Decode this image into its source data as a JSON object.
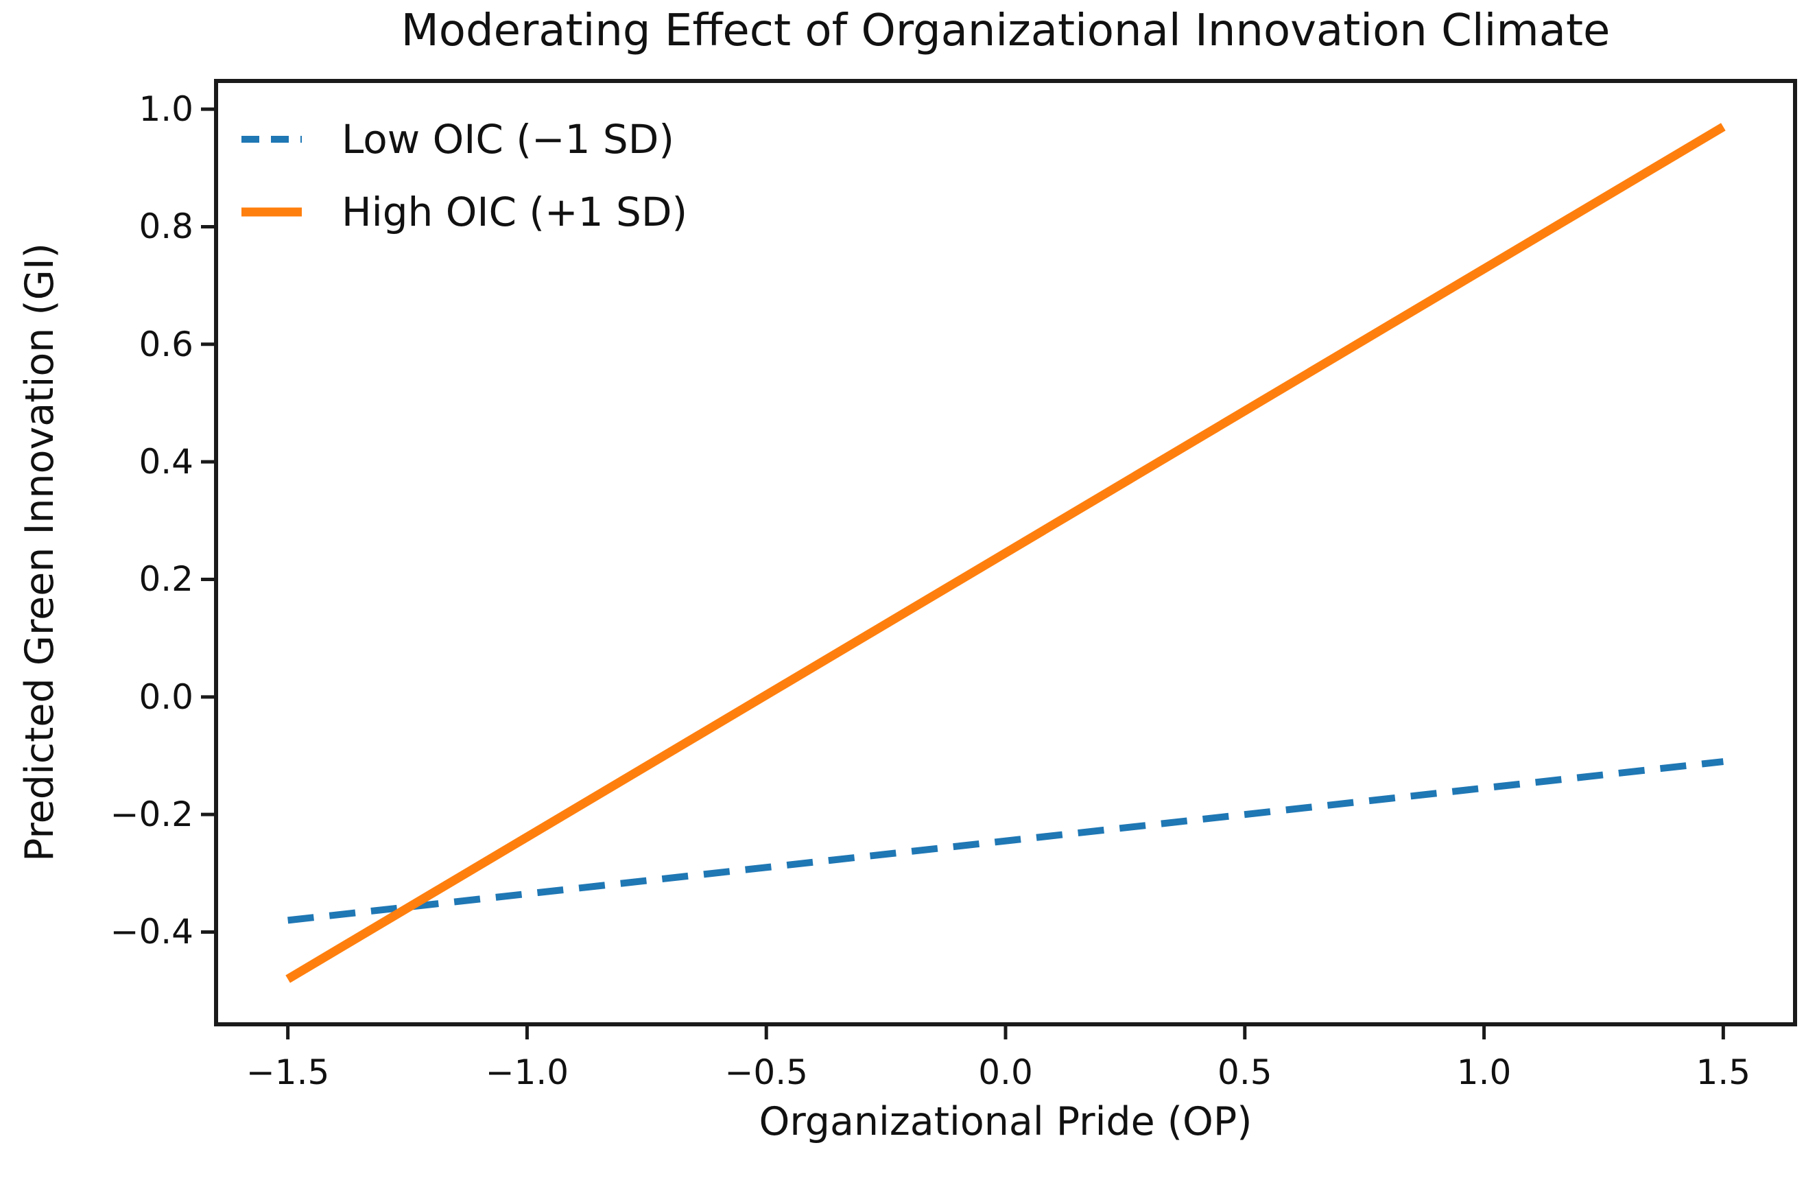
{
  "chart_data": {
    "type": "line",
    "title": "Moderating Effect of Organizational Innovation Climate",
    "xlabel": "Organizational Pride (OP)",
    "ylabel": "Predicted Green Innovation (GI)",
    "xlim": [
      -1.65,
      1.65
    ],
    "ylim": [
      -0.557,
      1.048
    ],
    "xticks": [
      -1.5,
      -1.0,
      -0.5,
      0.0,
      0.5,
      1.0,
      1.5
    ],
    "xtick_labels": [
      "−1.5",
      "−1.0",
      "−0.5",
      "0.0",
      "0.5",
      "1.0",
      "1.5"
    ],
    "yticks": [
      1.0,
      0.8,
      0.6,
      0.4,
      0.2,
      0.0,
      -0.2,
      -0.4
    ],
    "ytick_labels": [
      "1.0",
      "0.8",
      "0.6",
      "0.4",
      "0.2",
      "0.0",
      "−0.2",
      "−0.4"
    ],
    "grid": false,
    "legend_position": "upper left",
    "frame_color": "#1a1a1a",
    "series": [
      {
        "name": "Low OIC (−1 SD)",
        "color": "#1f77b4",
        "style": "dashed",
        "x": [
          -1.5,
          1.5
        ],
        "y": [
          -0.38,
          -0.11
        ]
      },
      {
        "name": "High OIC (+1 SD)",
        "color": "#ff7f0e",
        "style": "solid",
        "x": [
          -1.5,
          1.5
        ],
        "y": [
          -0.48,
          0.97
        ]
      }
    ]
  }
}
